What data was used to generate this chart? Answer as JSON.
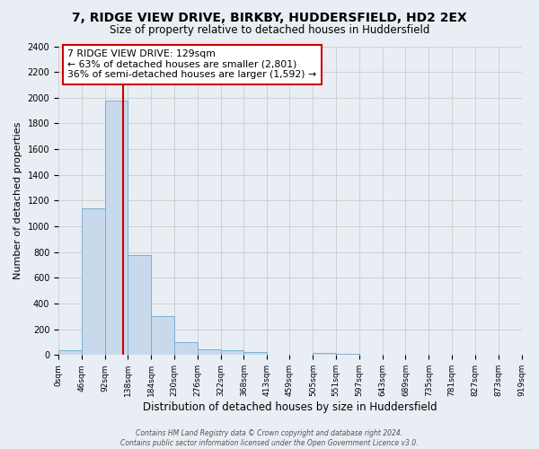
{
  "title": "7, RIDGE VIEW DRIVE, BIRKBY, HUDDERSFIELD, HD2 2EX",
  "subtitle": "Size of property relative to detached houses in Huddersfield",
  "xlabel": "Distribution of detached houses by size in Huddersfield",
  "ylabel": "Number of detached properties",
  "bar_color": "#c9d9ec",
  "bar_edge_color": "#7bafd4",
  "bin_edges": [
    0,
    46,
    92,
    138,
    184,
    230,
    276,
    322,
    368,
    413,
    459,
    505,
    551,
    597,
    643,
    689,
    735,
    781,
    827,
    873,
    919
  ],
  "bin_labels": [
    "0sqm",
    "46sqm",
    "92sqm",
    "138sqm",
    "184sqm",
    "230sqm",
    "276sqm",
    "322sqm",
    "368sqm",
    "413sqm",
    "459sqm",
    "505sqm",
    "551sqm",
    "597sqm",
    "643sqm",
    "689sqm",
    "735sqm",
    "781sqm",
    "827sqm",
    "873sqm",
    "919sqm"
  ],
  "bar_heights": [
    35,
    1140,
    1980,
    775,
    300,
    100,
    45,
    35,
    20,
    0,
    0,
    15,
    10,
    0,
    0,
    0,
    0,
    0,
    0,
    0
  ],
  "vline_x": 129,
  "vline_color": "#cc0000",
  "ylim": [
    0,
    2400
  ],
  "yticks": [
    0,
    200,
    400,
    600,
    800,
    1000,
    1200,
    1400,
    1600,
    1800,
    2000,
    2200,
    2400
  ],
  "annotation_line1": "7 RIDGE VIEW DRIVE: 129sqm",
  "annotation_line2": "← 63% of detached houses are smaller (2,801)",
  "annotation_line3": "36% of semi-detached houses are larger (1,592) →",
  "footer_text": "Contains HM Land Registry data © Crown copyright and database right 2024.\nContains public sector information licensed under the Open Government Licence v3.0.",
  "background_color": "#e8eef4",
  "plot_bg_color": "#e8eef4",
  "grid_color": "#cccccc",
  "title_fontsize": 10,
  "subtitle_fontsize": 8.5,
  "ylabel_fontsize": 8,
  "xlabel_fontsize": 8.5
}
